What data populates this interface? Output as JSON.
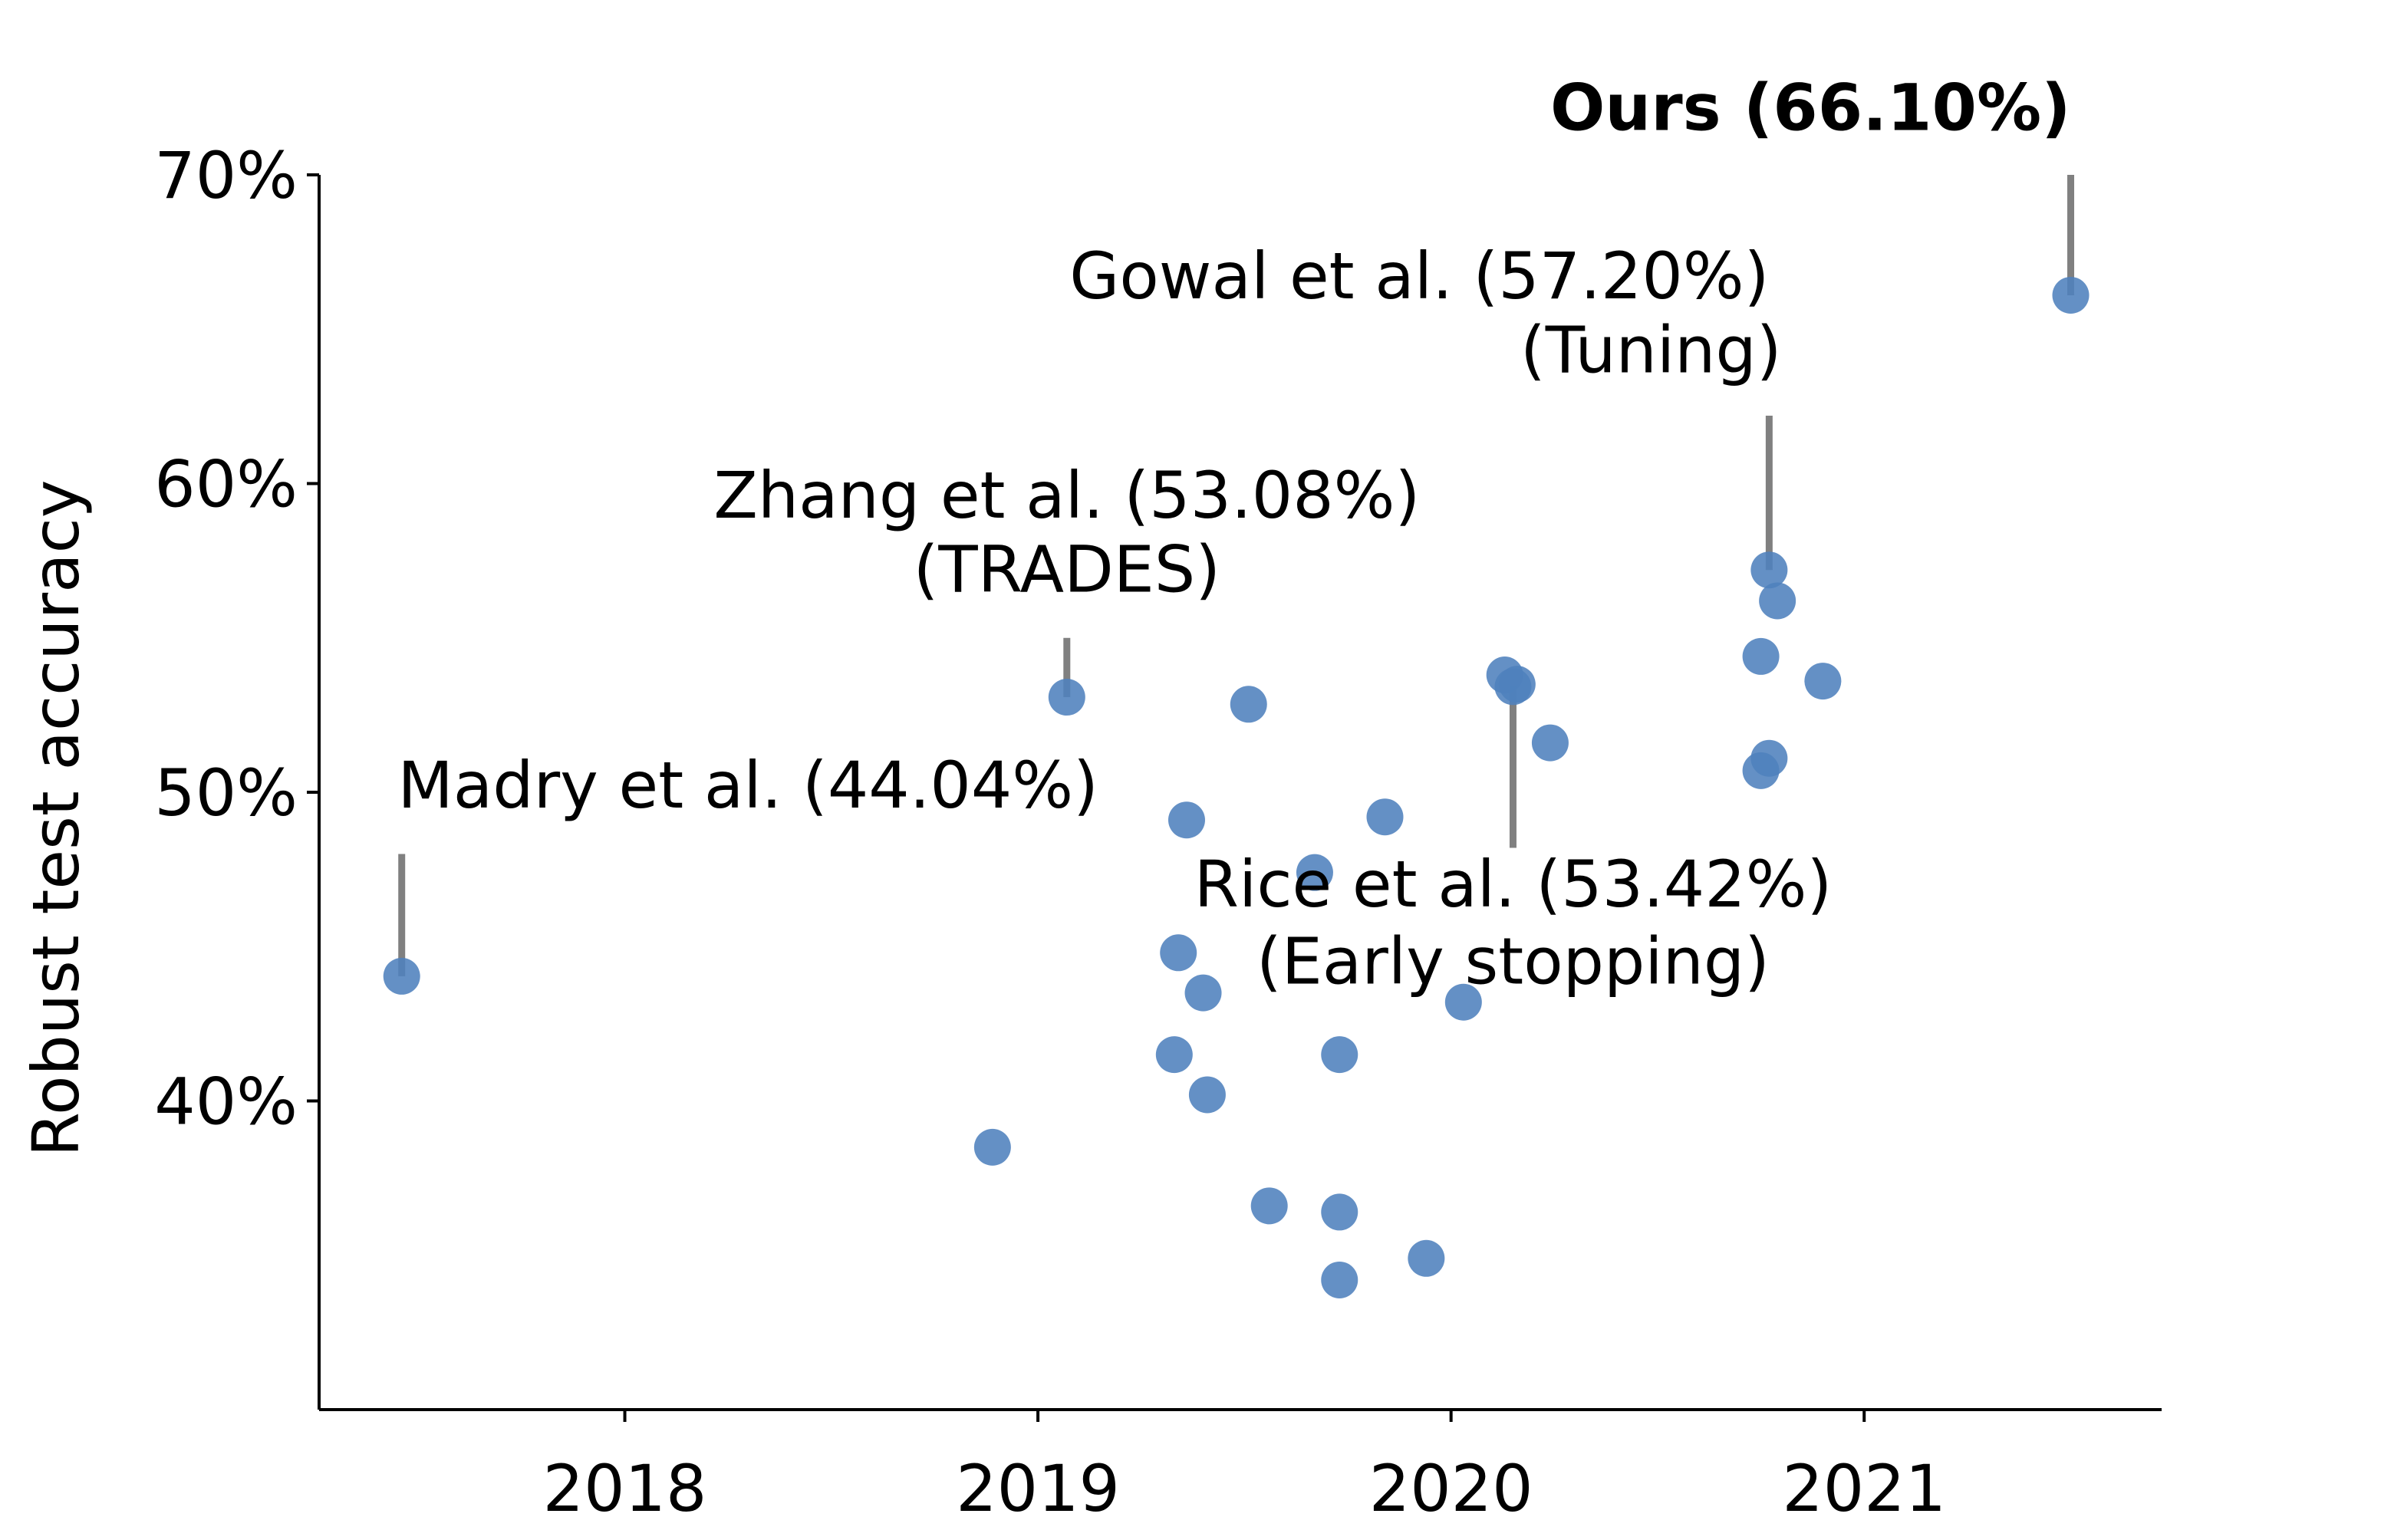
{
  "chart_data": {
    "type": "scatter",
    "title": "",
    "xlabel": "",
    "ylabel": "Robust test accuracy",
    "xlim": [
      2017.26,
      2021.72
    ],
    "ylim": [
      30,
      70
    ],
    "x_ticks": [
      2018,
      2019,
      2020,
      2021
    ],
    "x_tick_labels": [
      "2018",
      "2019",
      "2020",
      "2021"
    ],
    "y_ticks": [
      40,
      50,
      60,
      70
    ],
    "y_tick_labels": [
      "40%",
      "50%",
      "60%",
      "70%"
    ],
    "grid": false,
    "marker_color": "#4f81bd",
    "annotation_line_color": "#808080",
    "points": [
      {
        "x": 2017.46,
        "y": 44.04
      },
      {
        "x": 2018.89,
        "y": 38.5
      },
      {
        "x": 2019.07,
        "y": 53.08
      },
      {
        "x": 2019.33,
        "y": 41.5
      },
      {
        "x": 2019.34,
        "y": 44.8
      },
      {
        "x": 2019.36,
        "y": 49.1
      },
      {
        "x": 2019.4,
        "y": 43.5
      },
      {
        "x": 2019.41,
        "y": 40.2
      },
      {
        "x": 2019.51,
        "y": 52.85
      },
      {
        "x": 2019.56,
        "y": 36.6
      },
      {
        "x": 2019.67,
        "y": 47.4
      },
      {
        "x": 2019.73,
        "y": 41.5
      },
      {
        "x": 2019.73,
        "y": 36.4
      },
      {
        "x": 2019.73,
        "y": 34.2
      },
      {
        "x": 2019.84,
        "y": 49.2
      },
      {
        "x": 2019.94,
        "y": 34.9
      },
      {
        "x": 2020.03,
        "y": 43.2
      },
      {
        "x": 2020.13,
        "y": 53.8
      },
      {
        "x": 2020.15,
        "y": 53.42
      },
      {
        "x": 2020.16,
        "y": 53.5
      },
      {
        "x": 2020.24,
        "y": 51.6
      },
      {
        "x": 2020.75,
        "y": 54.4
      },
      {
        "x": 2020.75,
        "y": 50.7
      },
      {
        "x": 2020.77,
        "y": 57.2
      },
      {
        "x": 2020.77,
        "y": 51.1
      },
      {
        "x": 2020.79,
        "y": 56.2
      },
      {
        "x": 2020.9,
        "y": 53.6
      },
      {
        "x": 2021.5,
        "y": 66.1
      }
    ],
    "annotations": [
      {
        "lines": [
          "Madry et al. (44.04%)"
        ],
        "bold": false,
        "point": {
          "x": 2017.46,
          "y": 44.04
        },
        "line_top_y": 48.0,
        "text_anchor": "start",
        "text_x": 2017.45,
        "text_y": [
          49.5
        ]
      },
      {
        "lines": [
          "Zhang et al. (53.08%)",
          "(TRADES)"
        ],
        "bold": false,
        "point": {
          "x": 2019.07,
          "y": 53.08
        },
        "line_top_y": 55.0,
        "text_anchor": "middle",
        "text_x": 2019.07,
        "text_y": [
          58.9,
          56.5
        ]
      },
      {
        "lines": [
          "Rice et al. (53.42%)",
          "(Early stopping)"
        ],
        "bold": false,
        "point": {
          "x": 2020.15,
          "y": 53.42
        },
        "line_bottom_y": 48.2,
        "text_anchor": "middle",
        "text_x": 2020.15,
        "text_y": [
          46.3,
          43.8
        ]
      },
      {
        "lines": [
          "Gowal et al. (57.20%)",
          "(Tuning)"
        ],
        "bold": false,
        "point": {
          "x": 2020.77,
          "y": 57.2
        },
        "line_top_y": 62.2,
        "text_anchor": "end",
        "text_x": 2020.8,
        "text_y": [
          66.0,
          63.6
        ],
        "line_x_offsets": [
          -0.03,
          0.0
        ]
      },
      {
        "lines": [
          "Ours (66.10%)"
        ],
        "bold": true,
        "point": {
          "x": 2021.5,
          "y": 66.1
        },
        "line_top_y": 70.0,
        "text_anchor": "end",
        "text_x": 2021.5,
        "text_y": [
          71.45
        ]
      }
    ]
  }
}
